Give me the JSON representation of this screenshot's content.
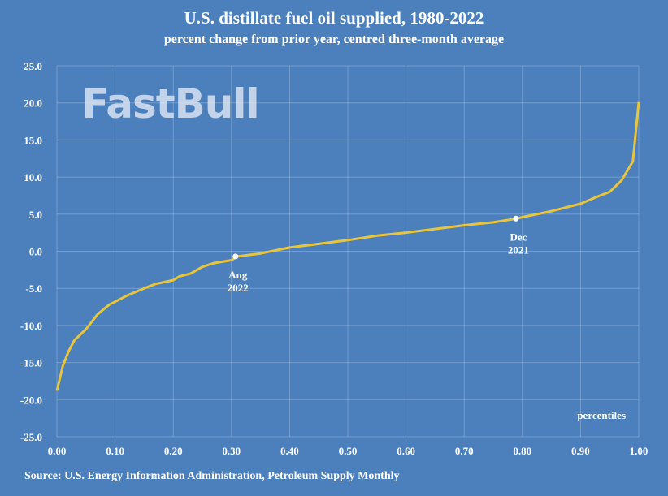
{
  "chart_data": {
    "type": "line",
    "title": "U.S. distillate fuel oil supplied, 1980-2022",
    "subtitle": "percent change from prior year, centred three-month average",
    "xlabel": "percentiles",
    "ylabel": "",
    "xlim": [
      0,
      1
    ],
    "ylim": [
      -25,
      25
    ],
    "x_ticks": [
      "0.00",
      "0.10",
      "0.20",
      "0.30",
      "0.40",
      "0.50",
      "0.60",
      "0.70",
      "0.80",
      "0.90",
      "1.00"
    ],
    "y_ticks": [
      "25.0",
      "20.0",
      "15.0",
      "10.0",
      "5.0",
      "0.0",
      "-5.0",
      "-10.0",
      "-15.0",
      "-20.0",
      "-25.0"
    ],
    "grid": true,
    "line_color": "#e8c53a",
    "background_color": "#4c80bd",
    "x": [
      0.0,
      0.01,
      0.02,
      0.03,
      0.05,
      0.07,
      0.09,
      0.1,
      0.12,
      0.15,
      0.17,
      0.2,
      0.21,
      0.23,
      0.25,
      0.27,
      0.3,
      0.31,
      0.35,
      0.4,
      0.45,
      0.5,
      0.55,
      0.6,
      0.65,
      0.7,
      0.75,
      0.79,
      0.8,
      0.85,
      0.9,
      0.93,
      0.95,
      0.97,
      0.98,
      0.99,
      1.0
    ],
    "y": [
      -18.8,
      -15.5,
      -13.5,
      -12.0,
      -10.5,
      -8.5,
      -7.2,
      -6.8,
      -6.0,
      -5.0,
      -4.4,
      -3.9,
      -3.4,
      -3.0,
      -2.1,
      -1.6,
      -1.2,
      -0.7,
      -0.3,
      0.5,
      1.0,
      1.5,
      2.1,
      2.5,
      3.0,
      3.5,
      3.9,
      4.4,
      4.6,
      5.4,
      6.4,
      7.4,
      8.0,
      9.5,
      10.8,
      12.1,
      20.1
    ],
    "annotations": [
      {
        "x": 0.307,
        "y": -0.7,
        "line1": "Aug",
        "line2": "2022"
      },
      {
        "x": 0.789,
        "y": 4.4,
        "line1": "Dec",
        "line2": "2021"
      }
    ]
  },
  "source": "Source: U.S. Energy Information Administration, Petroleum Supply Monthly",
  "watermark": "FastBull"
}
